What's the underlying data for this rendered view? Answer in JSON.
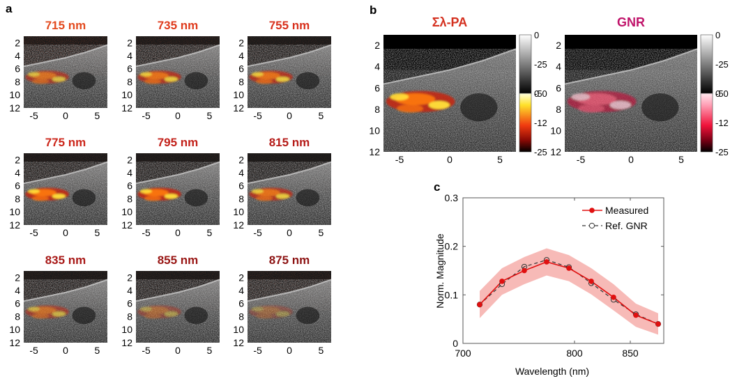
{
  "panel_letters": {
    "a": "a",
    "b": "b",
    "c": "c"
  },
  "colors": {
    "hot": "#d4301f",
    "gnr": "#c0136a",
    "measured": "#e01010",
    "band": "#f5a9a5"
  },
  "panel_a": {
    "panels": [
      {
        "title": "715 nm",
        "color": "#e34a1e",
        "signal": 0.75,
        "noise": 0.55
      },
      {
        "title": "735 nm",
        "color": "#df3a1c",
        "signal": 0.85,
        "noise": 0.4
      },
      {
        "title": "755 nm",
        "color": "#d8301c",
        "signal": 0.85,
        "noise": 0.3
      },
      {
        "title": "775 nm",
        "color": "#cc261a",
        "signal": 1.0,
        "noise": 0.3
      },
      {
        "title": "795 nm",
        "color": "#c22019",
        "signal": 1.0,
        "noise": 0.25
      },
      {
        "title": "815 nm",
        "color": "#b51b18",
        "signal": 0.85,
        "noise": 0.2
      },
      {
        "title": "835 nm",
        "color": "#a81816",
        "signal": 0.65,
        "noise": 0.3
      },
      {
        "title": "855 nm",
        "color": "#981513",
        "signal": 0.45,
        "noise": 0.3
      },
      {
        "title": "875 nm",
        "color": "#8c1212",
        "signal": 0.35,
        "noise": 0.4
      }
    ],
    "y_ticks": [
      "2",
      "4",
      "6",
      "8",
      "10",
      "12"
    ],
    "x_ticks": [
      "-5",
      "0",
      "5"
    ]
  },
  "panel_b": {
    "images": [
      {
        "title": "Σλ-PA",
        "title_color": "#d4301f",
        "map": "hot"
      },
      {
        "title": "GNR",
        "title_color": "#c0136a",
        "map": "pink"
      }
    ],
    "y_ticks": [
      "2",
      "4",
      "6",
      "8",
      "10",
      "12"
    ],
    "x_ticks": [
      "-5",
      "0",
      "5"
    ],
    "colorbar_gray_ticks": [
      "0",
      "-25",
      "-50"
    ],
    "colorbar_color_ticks": [
      "0",
      "-12",
      "-25"
    ]
  },
  "chart_data": {
    "type": "line",
    "xlabel": "Wavelength (nm)",
    "ylabel": "Norm. Magnitude",
    "xlim": [
      700,
      880
    ],
    "ylim": [
      0,
      0.3
    ],
    "x_ticks": [
      "700",
      "800",
      "850"
    ],
    "x_tick_values": [
      700,
      800,
      850
    ],
    "y_ticks": [
      "0",
      "0.1",
      "0.2",
      "0.3"
    ],
    "y_tick_values": [
      0,
      0.1,
      0.2,
      0.3
    ],
    "x": [
      715,
      735,
      755,
      775,
      795,
      815,
      835,
      855,
      875
    ],
    "series": [
      {
        "name": "Measured",
        "values": [
          0.08,
          0.128,
          0.15,
          0.168,
          0.155,
          0.128,
          0.095,
          0.058,
          0.04
        ],
        "color": "#e01010"
      },
      {
        "name": "Ref. GNR",
        "values": [
          0.08,
          0.122,
          0.158,
          0.172,
          0.157,
          0.124,
          0.09,
          0.06,
          0.04
        ],
        "color": "#333333"
      }
    ],
    "band_upper": [
      0.108,
      0.155,
      0.178,
      0.196,
      0.182,
      0.155,
      0.122,
      0.082,
      0.062
    ],
    "band_lower": [
      0.052,
      0.1,
      0.122,
      0.14,
      0.128,
      0.101,
      0.068,
      0.034,
      0.018
    ],
    "legend_position": "top-right",
    "grid": false
  }
}
